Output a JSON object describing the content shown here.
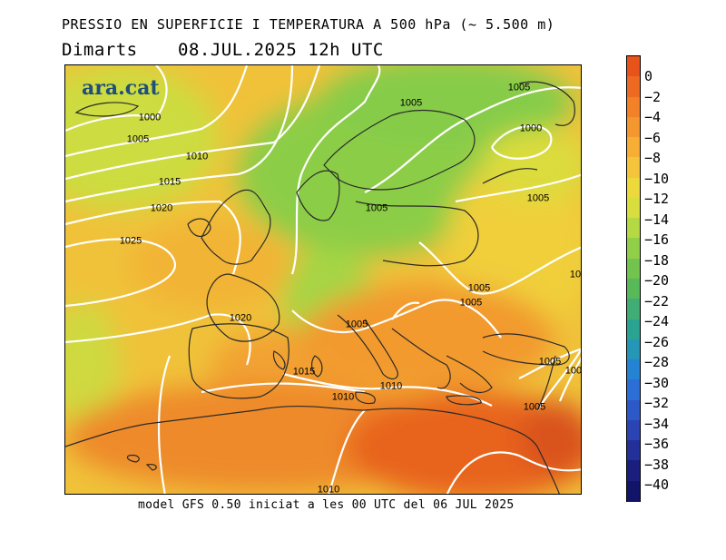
{
  "title": "PRESSIO EN SUPERFICIE I TEMPERATURA A 500 hPa (~ 5.500 m)",
  "subtitle": {
    "day": "Dimarts",
    "datetime": "08.JUL.2025 12h UTC"
  },
  "footer": "model GFS 0.50 iniciat a les 00 UTC del 06 JUL 2025",
  "logo": "ara.cat",
  "isobars": [
    "1000",
    "1005",
    "1010",
    "1015",
    "1020",
    "1025",
    "1005",
    "1000",
    "1005",
    "1005",
    "1005",
    "1005",
    "1005",
    "1005",
    "1010",
    "1015",
    "1010",
    "1005",
    "1020",
    "1010",
    "1005",
    "1005",
    "10"
  ],
  "colorbar": {
    "labels": [
      "0",
      "−2",
      "−4",
      "−6",
      "−8",
      "−10",
      "−12",
      "−14",
      "−16",
      "−18",
      "−20",
      "−22",
      "−24",
      "−26",
      "−28",
      "−30",
      "−32",
      "−34",
      "−36",
      "−38",
      "−40"
    ],
    "colors": [
      "#e8531c",
      "#ee6a22",
      "#f28128",
      "#f4972e",
      "#f6ae34",
      "#f4c53a",
      "#eed93c",
      "#d7de3e",
      "#b4d943",
      "#92cf48",
      "#73c44e",
      "#57b95a",
      "#3fad74",
      "#2ba392",
      "#2596b6",
      "#2483d2",
      "#2a6ed6",
      "#2d58c8",
      "#2b44b4",
      "#23309a",
      "#1a1f7e",
      "#12146a"
    ]
  },
  "colors": {
    "hot": "#e05a1f",
    "warm": "#f2a334",
    "mild": "#e9d13c",
    "cool": "#9ccf46",
    "cold": "#5bbb58"
  }
}
